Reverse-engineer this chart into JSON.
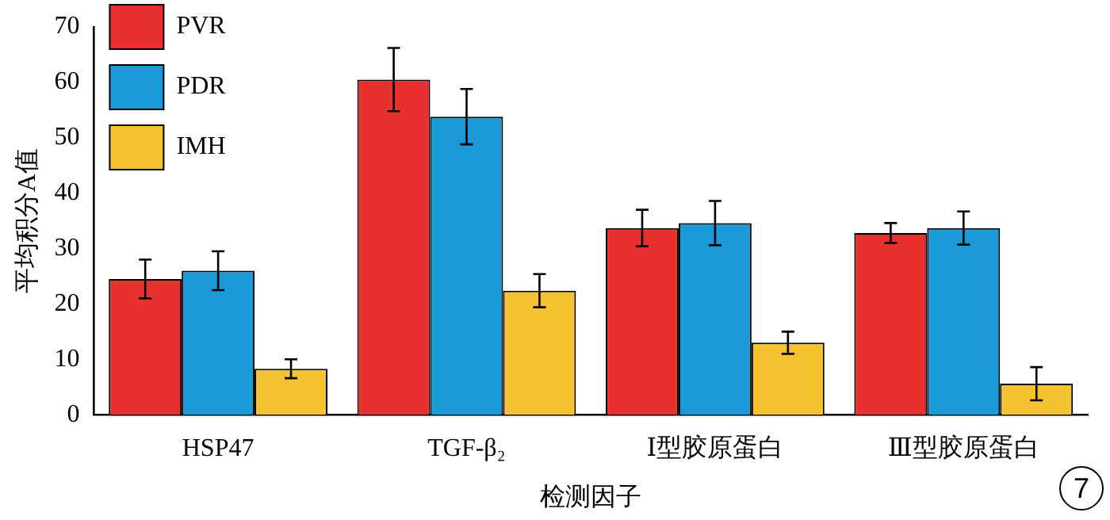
{
  "chart_data": {
    "type": "bar",
    "xlabel": "检测因子",
    "ylabel": "平均积分A值",
    "categories": [
      "HSP47",
      "TGF-β₂",
      "Ⅰ型胶原蛋白",
      "Ⅲ型胶原蛋白"
    ],
    "series": [
      {
        "name": "PVR",
        "color": "#e8312f",
        "values": [
          24.5,
          60.5,
          33.7,
          32.8
        ],
        "errors": [
          3.5,
          5.7,
          3.3,
          1.8
        ]
      },
      {
        "name": "PDR",
        "color": "#1a9ad6",
        "values": [
          26,
          53.8,
          34.6,
          33.7
        ],
        "errors": [
          3.5,
          5,
          4,
          3
        ]
      },
      {
        "name": "IMH",
        "color": "#f5c231",
        "values": [
          8.3,
          22.4,
          13,
          5.6
        ],
        "errors": [
          1.7,
          3,
          2,
          3
        ]
      }
    ],
    "ylim": [
      0,
      70
    ],
    "yticks": [
      0,
      10,
      20,
      30,
      40,
      50,
      60,
      70
    ],
    "grid": false,
    "legend": "top left",
    "annotations": [
      "7"
    ]
  }
}
